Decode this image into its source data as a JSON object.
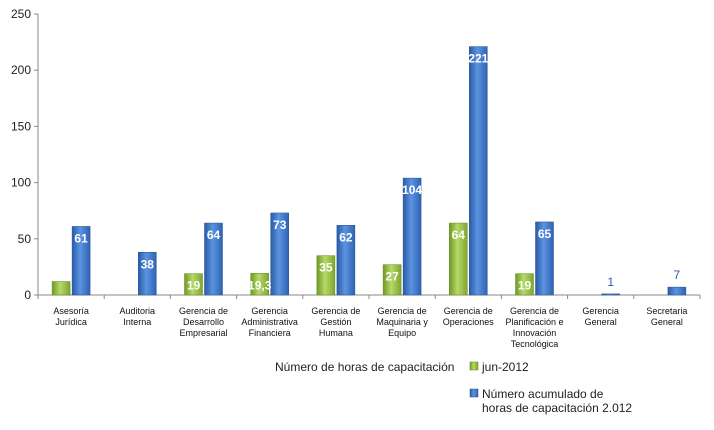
{
  "chart_data": {
    "type": "bar",
    "categories": [
      "Asesoría Jurídica",
      "Auditoria Interna",
      "Gerencia de Desarrollo Empresarial",
      "Gerencia Administrativa Financiera",
      "Gerencia de Gestión Humana",
      "Gerencia de Maquinaria y Equipo",
      "Gerencia de Operaciones",
      "Gerencia de Planificación e Innovación Tecnológica",
      "Gerencia General",
      "Secretaria General"
    ],
    "category_lines": [
      [
        "Asesoría",
        "Jurídica"
      ],
      [
        "Auditoria",
        "Interna"
      ],
      [
        "Gerencia de",
        "Desarrollo",
        "Empresarial"
      ],
      [
        "Gerencia",
        "Administrativa",
        "Financiera"
      ],
      [
        "Gerencia de",
        "Gestión",
        "Humana"
      ],
      [
        "Gerencia de",
        "Maquinaria y",
        "Equipo"
      ],
      [
        "Gerencia de",
        "Operaciones"
      ],
      [
        "Gerencia de",
        "Planificación e",
        "Innovación",
        "Tecnológica"
      ],
      [
        "Gerencia",
        "General"
      ],
      [
        "Secretaria",
        "General"
      ]
    ],
    "series": [
      {
        "name": "jun-2012",
        "values": [
          12,
          0,
          19,
          19.3,
          35,
          27,
          64,
          19,
          0,
          0
        ],
        "labels": [
          "",
          "",
          "19",
          "19,3",
          "35",
          "27",
          "64",
          "19",
          "",
          ""
        ],
        "color": "#8cb83a"
      },
      {
        "name": "Número acumulado de horas de capacitación 2.012",
        "values": [
          61,
          38,
          64,
          73,
          62,
          104,
          221,
          65,
          1,
          7
        ],
        "labels": [
          "61",
          "38",
          "64",
          "73",
          "62",
          "104",
          "221",
          "65",
          "1",
          "7"
        ],
        "color": "#3a73c8"
      }
    ],
    "legend_title": "Número de horas de capacitación",
    "legend_series_lines": [
      [
        "jun-2012"
      ],
      [
        "Número acumulado de",
        "horas de capacitación 2.012"
      ]
    ],
    "yticks": [
      0,
      50,
      100,
      150,
      200,
      250
    ],
    "ylim": [
      0,
      250
    ],
    "grid": false,
    "legend_position": "bottom-right"
  }
}
